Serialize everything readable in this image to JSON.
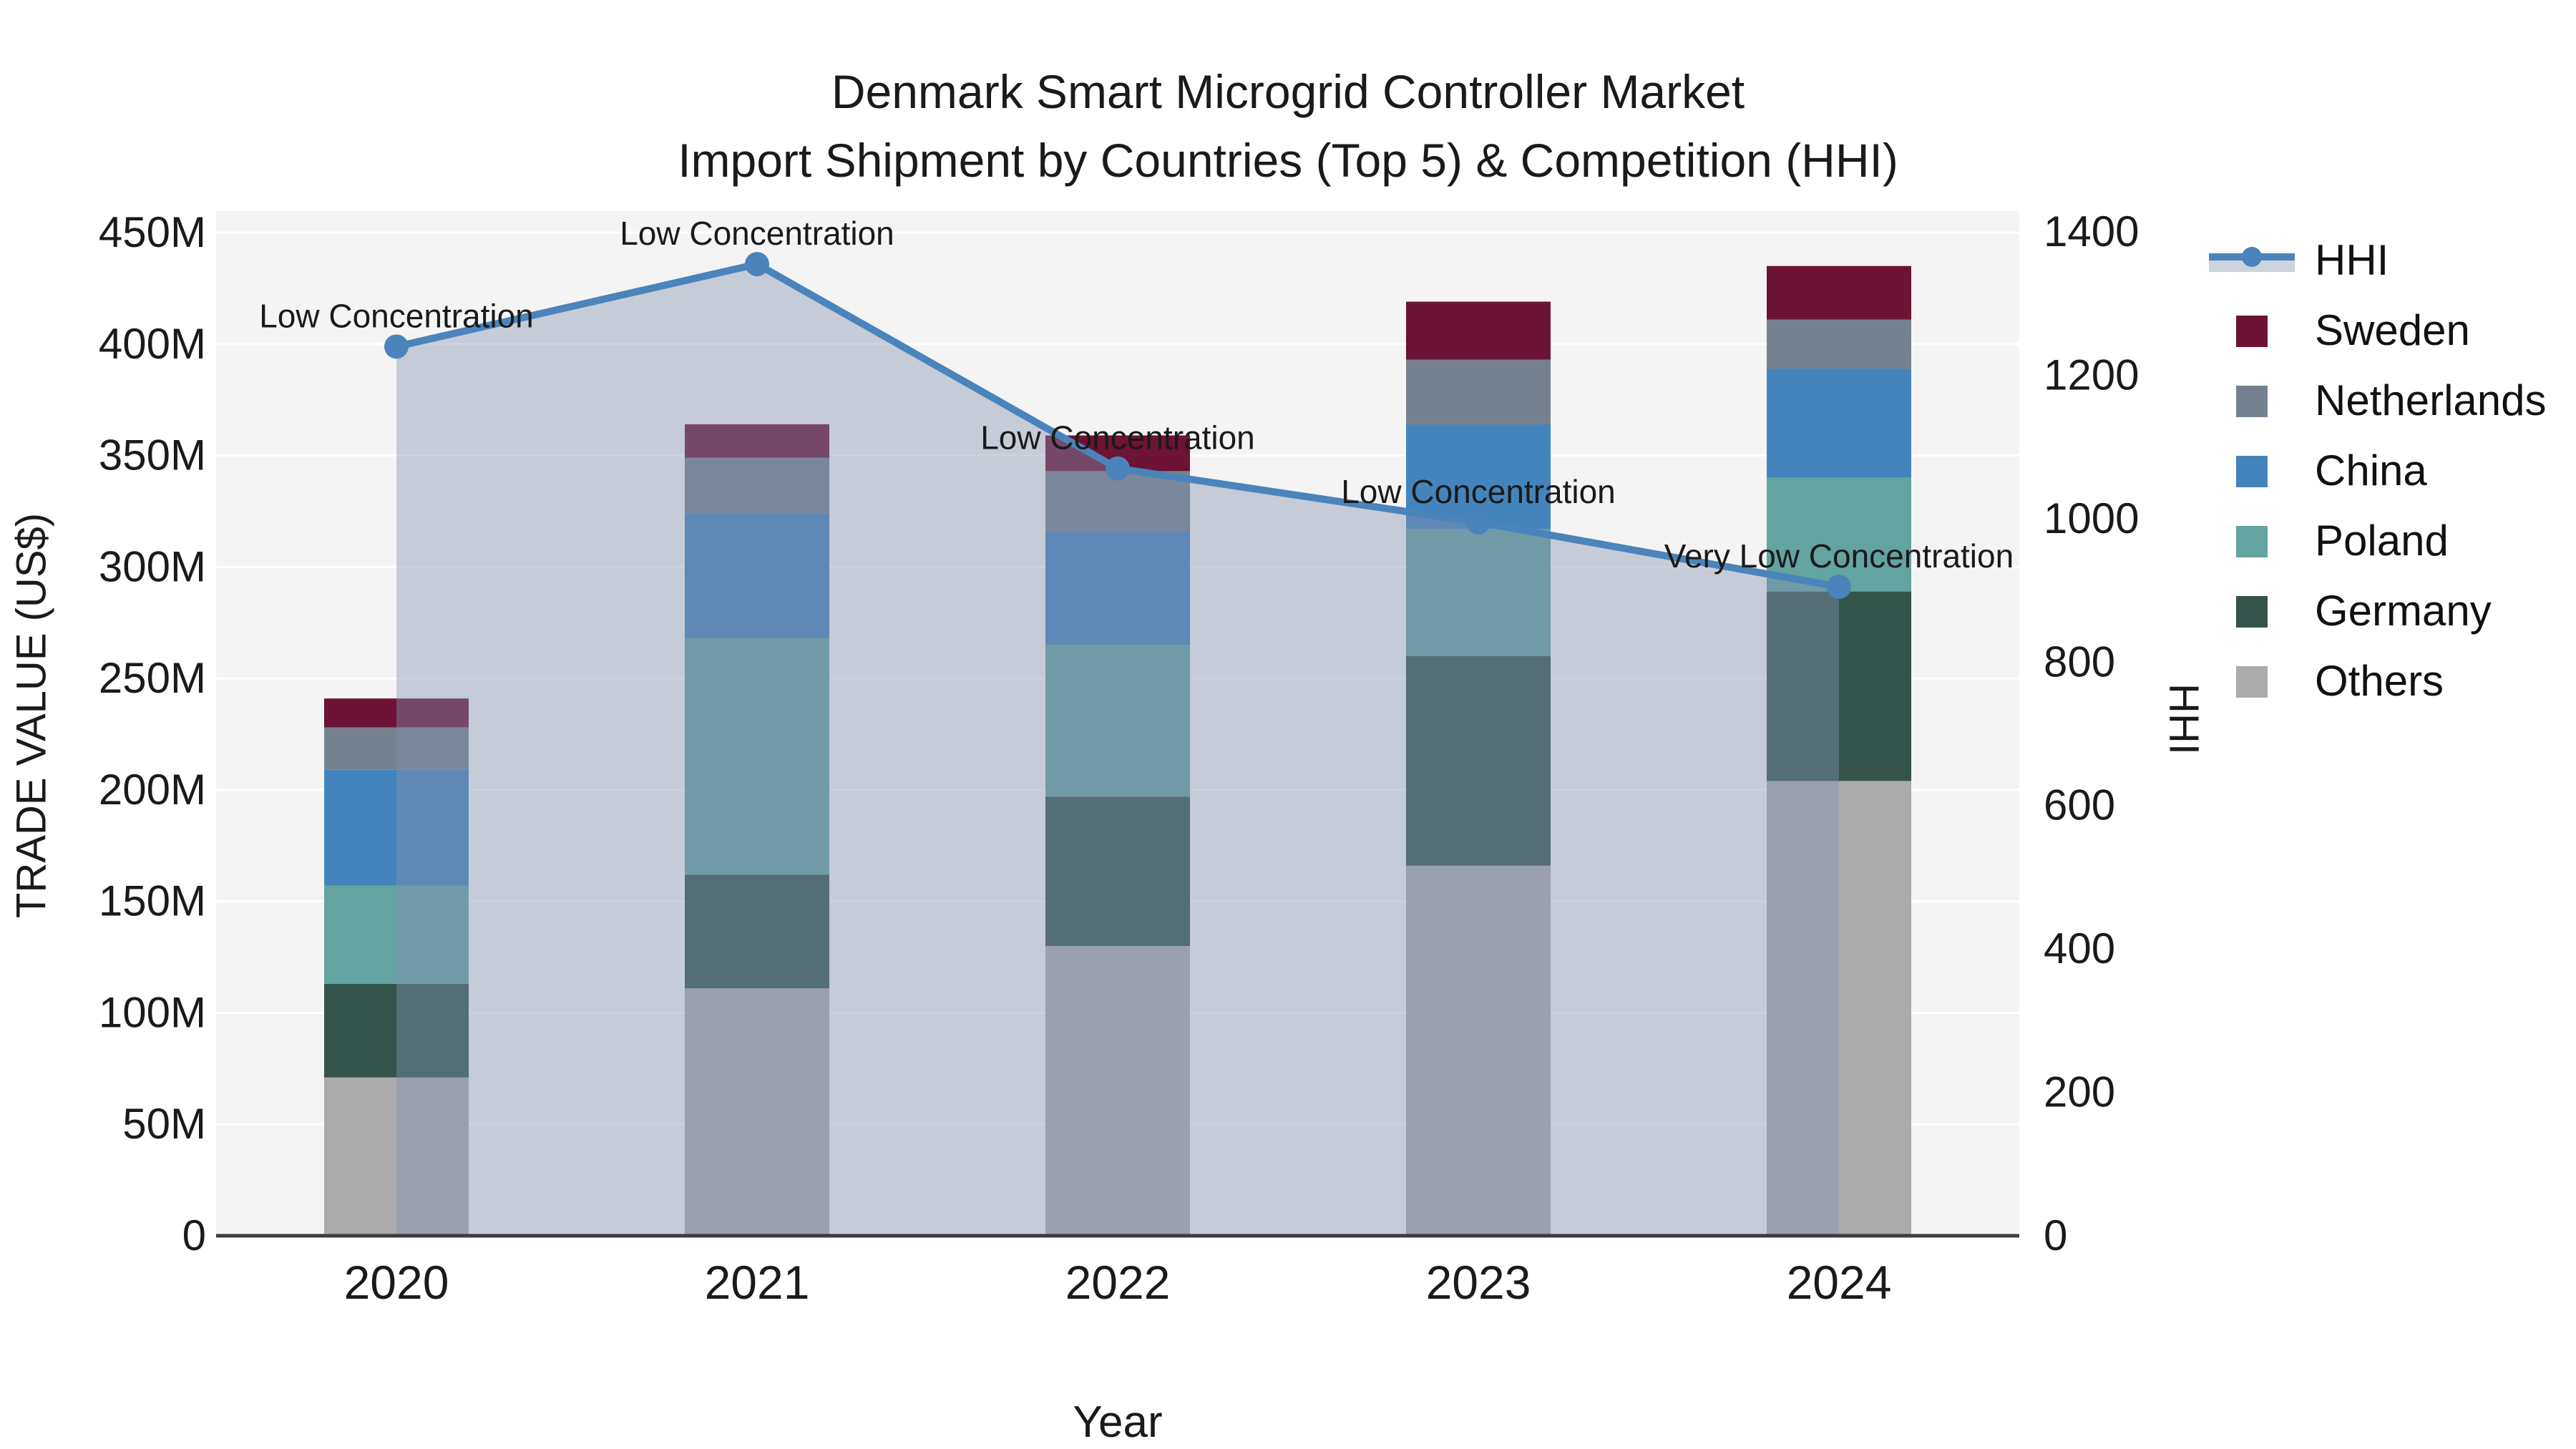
{
  "title": {
    "line1": "Denmark Smart Microgrid Controller Market",
    "line2": "Import Shipment by Countries (Top 5) & Competition (HHI)"
  },
  "chart_data": {
    "type": "combo_stacked_bar_line",
    "categories": [
      "2020",
      "2021",
      "2022",
      "2023",
      "2024"
    ],
    "bar_unit": "USD (millions)",
    "bar_series": [
      {
        "name": "Others",
        "color": "#ABABAB",
        "values_musd": [
          71,
          111,
          130,
          166,
          204
        ]
      },
      {
        "name": "Germany",
        "color": "#34544B",
        "values_musd": [
          42,
          51,
          67,
          94,
          85
        ]
      },
      {
        "name": "Poland",
        "color": "#63A3A0",
        "values_musd": [
          44,
          106,
          68,
          57,
          51
        ]
      },
      {
        "name": "China",
        "color": "#4484BC",
        "values_musd": [
          52,
          56,
          51,
          47,
          49
        ]
      },
      {
        "name": "Netherlands",
        "color": "#75818E",
        "values_musd": [
          19,
          25,
          27,
          29,
          22
        ]
      },
      {
        "name": "Sweden",
        "color": "#6D1335",
        "values_musd": [
          13,
          15,
          16,
          26,
          24
        ]
      }
    ],
    "bar_totals_musd": [
      241,
      364,
      359,
      419,
      435
    ],
    "line_series": {
      "name": "HHI",
      "color": "#4A84BB",
      "area_fill": "rgba(130,145,175,0.42)",
      "values": [
        1240,
        1355,
        1070,
        995,
        905
      ]
    },
    "point_annotations": [
      "Low Concentration",
      "Low Concentration",
      "Low Concentration",
      "Low Concentration",
      "Very Low Concentration"
    ],
    "left_axis": {
      "title": "TRADE VALUE (US$)",
      "min": 0,
      "max_musd": 450,
      "tick_step_musd": 50,
      "tick_labels": [
        "0",
        "50M",
        "100M",
        "150M",
        "200M",
        "250M",
        "300M",
        "350M",
        "400M",
        "450M"
      ]
    },
    "right_axis": {
      "title": "HHI",
      "min": 0,
      "max": 1400,
      "tick_step": 200,
      "tick_labels": [
        "0",
        "200",
        "400",
        "600",
        "800",
        "1000",
        "1200",
        "1400"
      ]
    },
    "x_axis": {
      "title": "Year"
    },
    "grid": true,
    "plot_background": "#f4f4f4",
    "gridline_color": "#ffffff",
    "axis_line_color": "#3c3c3c",
    "legend_position": "right",
    "legend": [
      {
        "name": "HHI",
        "type": "line",
        "color": "#4A84BB"
      },
      {
        "name": "Sweden",
        "type": "box",
        "color": "#6D1335"
      },
      {
        "name": "Netherlands",
        "type": "box",
        "color": "#75818E"
      },
      {
        "name": "China",
        "type": "box",
        "color": "#4484BC"
      },
      {
        "name": "Poland",
        "type": "box",
        "color": "#63A3A0"
      },
      {
        "name": "Germany",
        "type": "box",
        "color": "#34544B"
      },
      {
        "name": "Others",
        "type": "box",
        "color": "#ABABAB"
      }
    ]
  }
}
